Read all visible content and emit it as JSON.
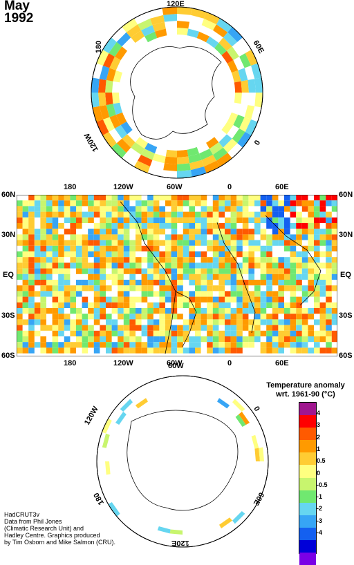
{
  "header": {
    "month": "May",
    "year": "1992"
  },
  "north_polar": {
    "lon_labels": [
      "120E",
      "180",
      "60E",
      "120W",
      "0"
    ]
  },
  "main_map": {
    "top_lon_labels": [
      "180",
      "120W",
      "60W",
      "0",
      "60E"
    ],
    "bottom_lon_labels": [
      "180",
      "120W",
      "60W",
      "0",
      "60E"
    ],
    "lat_labels": [
      "60N",
      "30N",
      "EQ",
      "30S",
      "60S"
    ]
  },
  "south_polar": {
    "lon_labels": [
      "60W",
      "120W",
      "0",
      "180",
      "60E",
      "120E"
    ]
  },
  "legend": {
    "title_line1": "Temperature anomaly",
    "title_line2": "wrt. 1961-90  (°C)",
    "labels": [
      "4",
      "3",
      "2",
      "1",
      "0.5",
      "0",
      "-0.5",
      "-1",
      "-2",
      "-3",
      "-4"
    ],
    "colors": [
      "#a0168f",
      "#ff0000",
      "#ff5a00",
      "#ff9a00",
      "#ffcc33",
      "#ffff80",
      "#c8f56e",
      "#70e870",
      "#66d6f0",
      "#37a5f5",
      "#1460f0",
      "#0000d8",
      "#7a00e6"
    ]
  },
  "credits": {
    "line1": "HadCRUT3v",
    "line2": "Data from Phil Jones",
    "line3": "(Climatic Research Unit) and",
    "line4": "Hadley Centre.  Graphics produced",
    "line5": "by Tim Osborn and Mike Salmon (CRU)."
  }
}
